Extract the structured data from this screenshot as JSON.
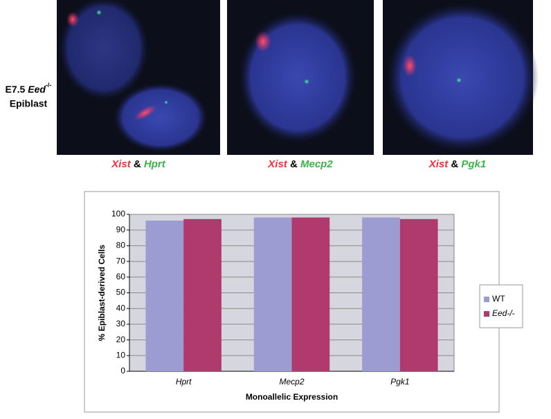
{
  "side_label": {
    "stage": "E7.5",
    "gene": "Eed",
    "genotype": "-/-",
    "tissue": "Epiblast"
  },
  "panels": [
    {
      "gene1": "Xist",
      "connector": "&",
      "gene2": "Hprt"
    },
    {
      "gene1": "Xist",
      "connector": "&",
      "gene2": "Mecp2"
    },
    {
      "gene1": "Xist",
      "connector": "&",
      "gene2": "Pgk1"
    }
  ],
  "chart_data": {
    "type": "bar",
    "x_label": "Monoallelic Expression",
    "y_label": "% Epiblast-derived Cells",
    "categories": [
      "Hprt",
      "Mecp2",
      "Pgk1"
    ],
    "series": [
      {
        "name": "WT",
        "color": "#9c9cd2",
        "values": [
          96,
          98,
          98
        ]
      },
      {
        "name": "Eed-/-",
        "color": "#b03a6e",
        "values": [
          97,
          98,
          97
        ]
      }
    ],
    "ylim": [
      0,
      100
    ],
    "yticks": [
      0,
      10,
      20,
      30,
      40,
      50,
      60,
      70,
      80,
      90,
      100
    ],
    "grid": true,
    "legend": "right"
  }
}
